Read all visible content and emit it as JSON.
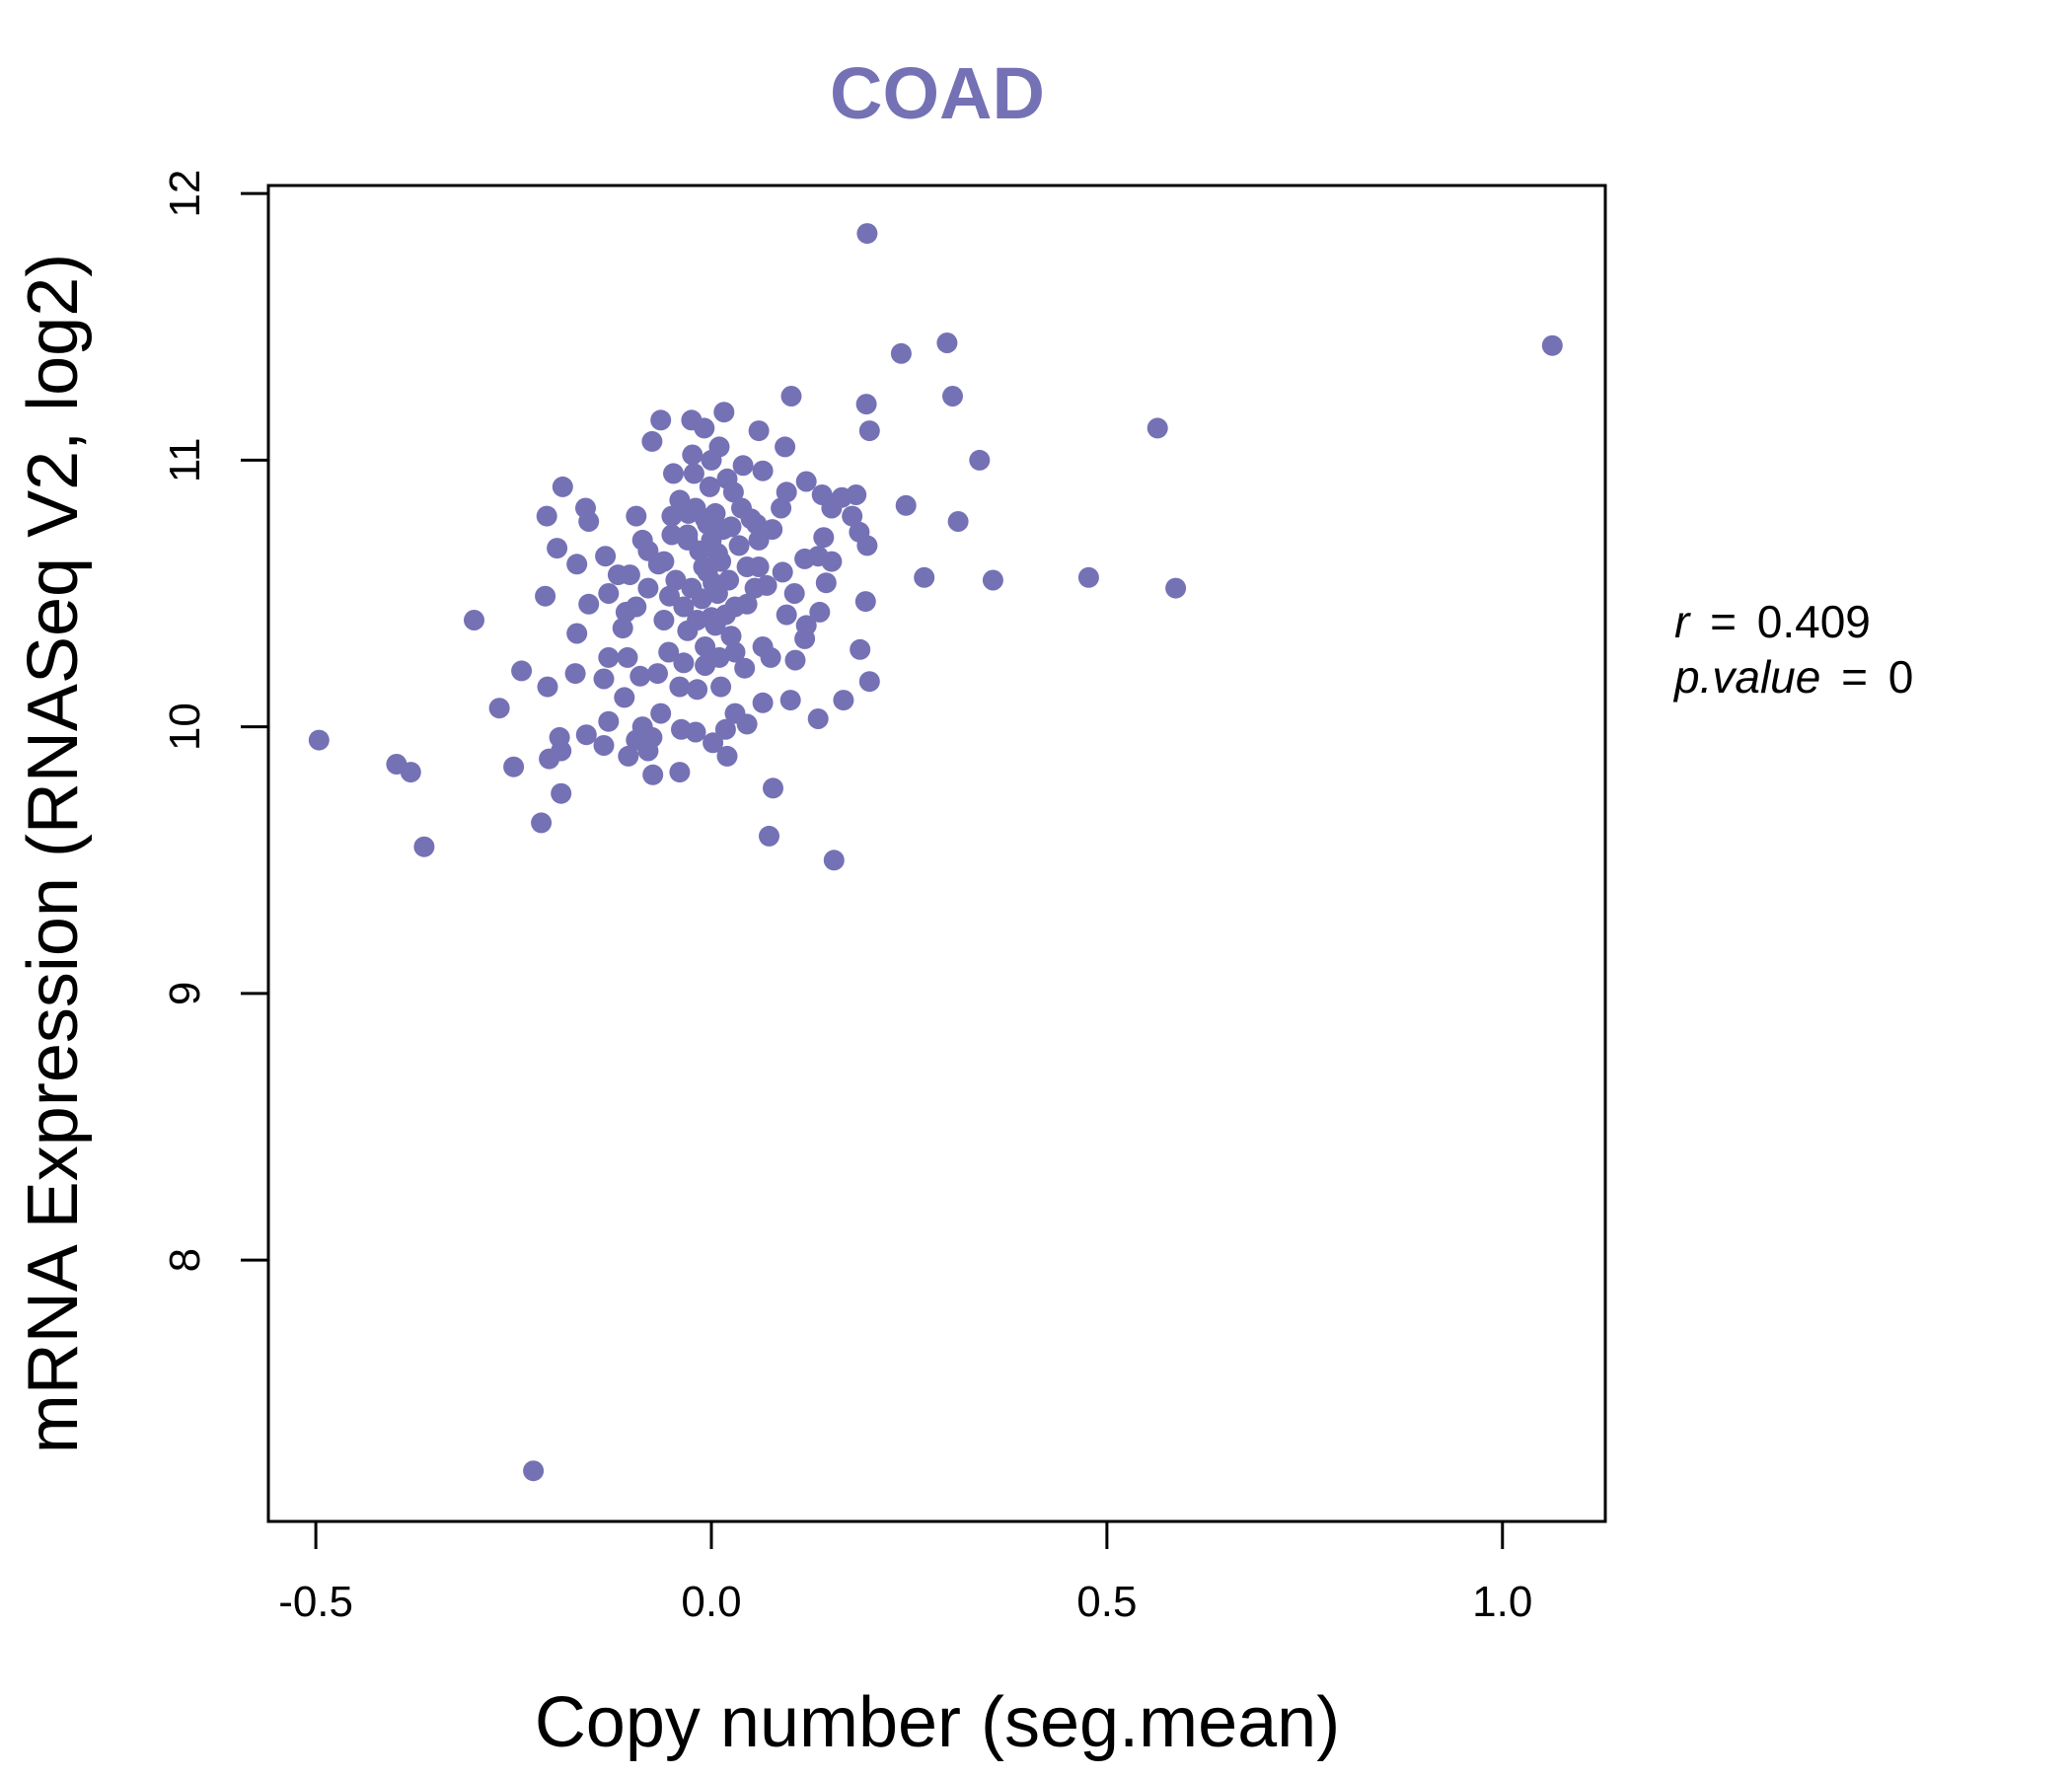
{
  "chart_data": {
    "type": "scatter",
    "title": "COAD",
    "xlabel": "Copy number (seg.mean)",
    "ylabel": "mRNA Expression (RNASeq V2, log2)",
    "xlim": [
      -0.56,
      1.13
    ],
    "ylim": [
      7.02,
      12.03
    ],
    "x_ticks": [
      -0.5,
      0.0,
      0.5,
      1.0
    ],
    "x_tick_labels": [
      "-0.5",
      "0.0",
      "0.5",
      "1.0"
    ],
    "y_ticks": [
      8,
      9,
      10,
      11,
      12
    ],
    "y_tick_labels": [
      "8",
      "9",
      "10",
      "11",
      "12"
    ],
    "point_color": "#7571b5",
    "annotation": {
      "r_label": "r",
      "r_value": "0.409",
      "p_label": "p.value",
      "p_value": "0",
      "equals": "="
    },
    "points": [
      [
        0.197,
        11.85
      ],
      [
        1.063,
        11.43
      ],
      [
        0.298,
        11.44
      ],
      [
        0.24,
        11.4
      ],
      [
        0.305,
        11.24
      ],
      [
        0.101,
        11.24
      ],
      [
        0.196,
        11.21
      ],
      [
        0.2,
        11.11
      ],
      [
        0.564,
        11.12
      ],
      [
        0.339,
        11.0
      ],
      [
        0.016,
        11.18
      ],
      [
        -0.064,
        11.15
      ],
      [
        -0.025,
        11.15
      ],
      [
        -0.009,
        11.12
      ],
      [
        0.06,
        11.11
      ],
      [
        -0.075,
        11.07
      ],
      [
        0.01,
        11.05
      ],
      [
        0.093,
        11.05
      ],
      [
        -0.024,
        11.02
      ],
      [
        0.0,
        11.0
      ],
      [
        0.04,
        10.98
      ],
      [
        0.065,
        10.96
      ],
      [
        -0.048,
        10.95
      ],
      [
        0.02,
        10.93
      ],
      [
        0.12,
        10.92
      ],
      [
        0.095,
        10.88
      ],
      [
        0.14,
        10.87
      ],
      [
        0.183,
        10.87
      ],
      [
        0.165,
        10.86
      ],
      [
        -0.188,
        10.9
      ],
      [
        0.246,
        10.83
      ],
      [
        0.152,
        10.82
      ],
      [
        0.088,
        10.82
      ],
      [
        -0.159,
        10.82
      ],
      [
        -0.029,
        10.8
      ],
      [
        -0.05,
        10.79
      ],
      [
        -0.208,
        10.79
      ],
      [
        -0.095,
        10.79
      ],
      [
        0.178,
        10.79
      ],
      [
        -0.155,
        10.77
      ],
      [
        0.312,
        10.77
      ],
      [
        0.057,
        10.76
      ],
      [
        -0.005,
        10.76
      ],
      [
        0.025,
        10.75
      ],
      [
        0.077,
        10.74
      ],
      [
        0.187,
        10.73
      ],
      [
        -0.03,
        10.72
      ],
      [
        0.142,
        10.71
      ],
      [
        -0.087,
        10.7
      ],
      [
        0.197,
        10.68
      ],
      [
        -0.195,
        10.67
      ],
      [
        -0.08,
        10.66
      ],
      [
        0.008,
        10.65
      ],
      [
        0.135,
        10.64
      ],
      [
        -0.134,
        10.64
      ],
      [
        0.118,
        10.63
      ],
      [
        0.152,
        10.62
      ],
      [
        -0.067,
        10.61
      ],
      [
        -0.17,
        10.61
      ],
      [
        0.06,
        10.6
      ],
      [
        0.09,
        10.58
      ],
      [
        -0.103,
        10.57
      ],
      [
        -0.118,
        10.57
      ],
      [
        0.269,
        10.56
      ],
      [
        0.477,
        10.56
      ],
      [
        0.356,
        10.55
      ],
      [
        0.145,
        10.54
      ],
      [
        0.07,
        10.53
      ],
      [
        -0.08,
        10.52
      ],
      [
        0.587,
        10.52
      ],
      [
        -0.13,
        10.5
      ],
      [
        0.105,
        10.5
      ],
      [
        -0.053,
        10.49
      ],
      [
        -0.21,
        10.49
      ],
      [
        0.195,
        10.47
      ],
      [
        -0.155,
        10.46
      ],
      [
        0.045,
        10.46
      ],
      [
        -0.095,
        10.45
      ],
      [
        -0.108,
        10.43
      ],
      [
        0.137,
        10.43
      ],
      [
        0.095,
        10.42
      ],
      [
        0.0,
        10.41
      ],
      [
        -0.3,
        10.4
      ],
      [
        -0.06,
        10.4
      ],
      [
        0.12,
        10.38
      ],
      [
        -0.112,
        10.37
      ],
      [
        -0.17,
        10.35
      ],
      [
        0.025,
        10.34
      ],
      [
        0.118,
        10.33
      ],
      [
        0.065,
        10.3
      ],
      [
        0.188,
        10.29
      ],
      [
        -0.054,
        10.28
      ],
      [
        0.03,
        10.28
      ],
      [
        -0.13,
        10.26
      ],
      [
        0.075,
        10.26
      ],
      [
        -0.106,
        10.26
      ],
      [
        0.106,
        10.25
      ],
      [
        -0.035,
        10.24
      ],
      [
        -0.008,
        10.23
      ],
      [
        -0.24,
        10.21
      ],
      [
        -0.068,
        10.2
      ],
      [
        0.042,
        10.22
      ],
      [
        -0.172,
        10.2
      ],
      [
        -0.09,
        10.19
      ],
      [
        -0.136,
        10.18
      ],
      [
        0.2,
        10.17
      ],
      [
        -0.207,
        10.15
      ],
      [
        -0.04,
        10.15
      ],
      [
        0.012,
        10.15
      ],
      [
        -0.018,
        10.14
      ],
      [
        -0.11,
        10.11
      ],
      [
        0.167,
        10.1
      ],
      [
        0.065,
        10.09
      ],
      [
        0.1,
        10.1
      ],
      [
        -0.268,
        10.07
      ],
      [
        0.03,
        10.05
      ],
      [
        -0.064,
        10.05
      ],
      [
        0.135,
        10.03
      ],
      [
        -0.13,
        10.02
      ],
      [
        0.045,
        10.01
      ],
      [
        -0.087,
        10.0
      ],
      [
        -0.038,
        9.99
      ],
      [
        -0.02,
        9.98
      ],
      [
        0.018,
        9.99
      ],
      [
        -0.158,
        9.97
      ],
      [
        -0.075,
        9.96
      ],
      [
        -0.192,
        9.96
      ],
      [
        -0.496,
        9.95
      ],
      [
        -0.095,
        9.95
      ],
      [
        0.002,
        9.94
      ],
      [
        -0.136,
        9.93
      ],
      [
        -0.08,
        9.91
      ],
      [
        -0.19,
        9.91
      ],
      [
        -0.105,
        9.89
      ],
      [
        -0.205,
        9.88
      ],
      [
        0.02,
        9.89
      ],
      [
        -0.398,
        9.86
      ],
      [
        -0.25,
        9.85
      ],
      [
        -0.38,
        9.83
      ],
      [
        -0.04,
        9.83
      ],
      [
        -0.074,
        9.82
      ],
      [
        0.078,
        9.77
      ],
      [
        -0.19,
        9.75
      ],
      [
        -0.215,
        9.64
      ],
      [
        0.073,
        9.59
      ],
      [
        -0.363,
        9.55
      ],
      [
        0.155,
        9.5
      ],
      [
        -0.225,
        7.21
      ],
      [
        -0.04,
        10.85
      ],
      [
        -0.02,
        10.82
      ],
      [
        -0.008,
        10.78
      ],
      [
        0.005,
        10.8
      ],
      [
        0.015,
        10.74
      ],
      [
        -0.03,
        10.7
      ],
      [
        -0.015,
        10.66
      ],
      [
        0.0,
        10.7
      ],
      [
        0.012,
        10.62
      ],
      [
        -0.005,
        10.58
      ],
      [
        0.022,
        10.55
      ],
      [
        -0.025,
        10.52
      ],
      [
        -0.012,
        10.48
      ],
      [
        0.008,
        10.5
      ],
      [
        0.03,
        10.45
      ],
      [
        -0.035,
        10.45
      ],
      [
        -0.018,
        10.4
      ],
      [
        0.005,
        10.38
      ],
      [
        0.018,
        10.42
      ],
      [
        -0.045,
        10.55
      ],
      [
        0.035,
        10.68
      ],
      [
        -0.002,
        10.9
      ],
      [
        0.028,
        10.88
      ],
      [
        -0.05,
        10.72
      ],
      [
        0.045,
        10.6
      ],
      [
        -0.008,
        10.3
      ],
      [
        0.01,
        10.26
      ],
      [
        0.05,
        10.78
      ],
      [
        0.06,
        10.7
      ],
      [
        -0.06,
        10.62
      ],
      [
        0.055,
        10.52
      ],
      [
        -0.022,
        10.95
      ],
      [
        0.038,
        10.82
      ],
      [
        -0.01,
        10.6
      ],
      [
        0.002,
        10.54
      ],
      [
        -0.03,
        10.36
      ]
    ]
  }
}
